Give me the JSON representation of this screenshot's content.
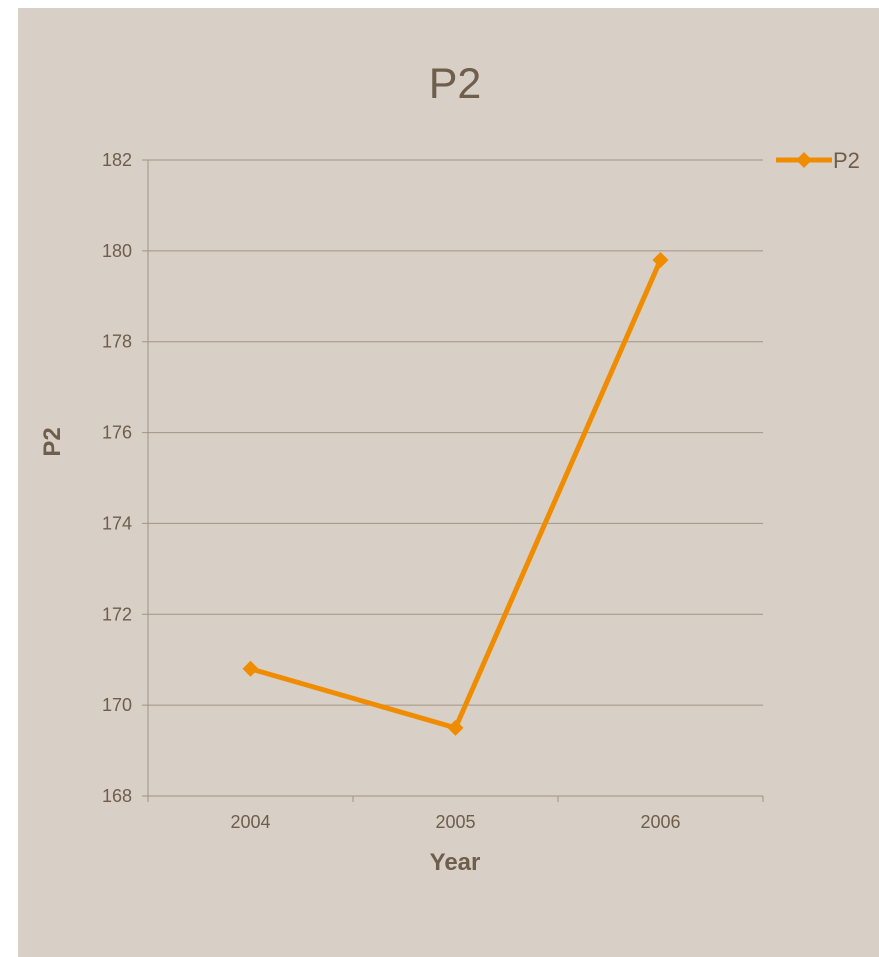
{
  "chart_data": {
    "type": "line",
    "title": "P2",
    "xlabel": "Year",
    "ylabel": "P2",
    "categories": [
      "2004",
      "2005",
      "2006"
    ],
    "series": [
      {
        "name": "P2",
        "values": [
          170.8,
          169.5,
          179.8
        ],
        "color": "#f08c00"
      }
    ],
    "ylim": [
      168,
      182
    ],
    "yticks": [
      168,
      170,
      172,
      174,
      176,
      178,
      180,
      182
    ],
    "grid": true,
    "legend": "top-right",
    "background": "#d8cfc6",
    "text_color": "#6e5e4b"
  }
}
